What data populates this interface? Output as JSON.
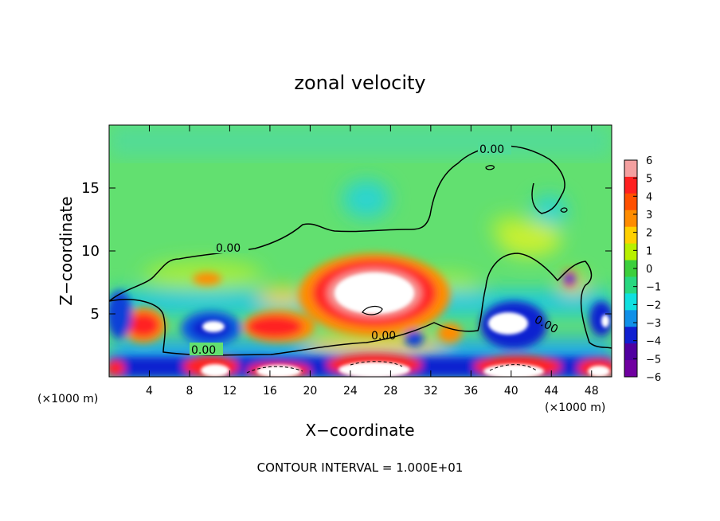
{
  "chart_data": {
    "type": "heatmap",
    "title": "zonal velocity",
    "xlabel": "X−coordinate",
    "ylabel": "Z−coordinate",
    "x_unit_left": "(×1000 m)",
    "x_unit_right": "(×1000 m)",
    "footer": "CONTOUR INTERVAL = 1.000E+01",
    "xlim": [
      0,
      50
    ],
    "ylim": [
      0,
      20
    ],
    "x_ticks": [
      4,
      8,
      12,
      16,
      20,
      24,
      28,
      32,
      36,
      40,
      44,
      48
    ],
    "y_ticks": [
      5,
      10,
      15
    ],
    "grid": false,
    "contour_label": "0.00",
    "colorbar": {
      "ticks": [
        "6",
        "5",
        "4",
        "3",
        "2",
        "1",
        "0",
        "−1",
        "−2",
        "−3",
        "−4",
        "−5",
        "−6"
      ],
      "range": [
        -6,
        6
      ],
      "colors": [
        "#f4a0a0",
        "#ff2020",
        "#ff5000",
        "#ff8c00",
        "#ffd000",
        "#b8f000",
        "#3ccf3c",
        "#28d880",
        "#10e0e0",
        "#1090e8",
        "#1020d0",
        "#5000a0",
        "#7000a0"
      ]
    }
  }
}
